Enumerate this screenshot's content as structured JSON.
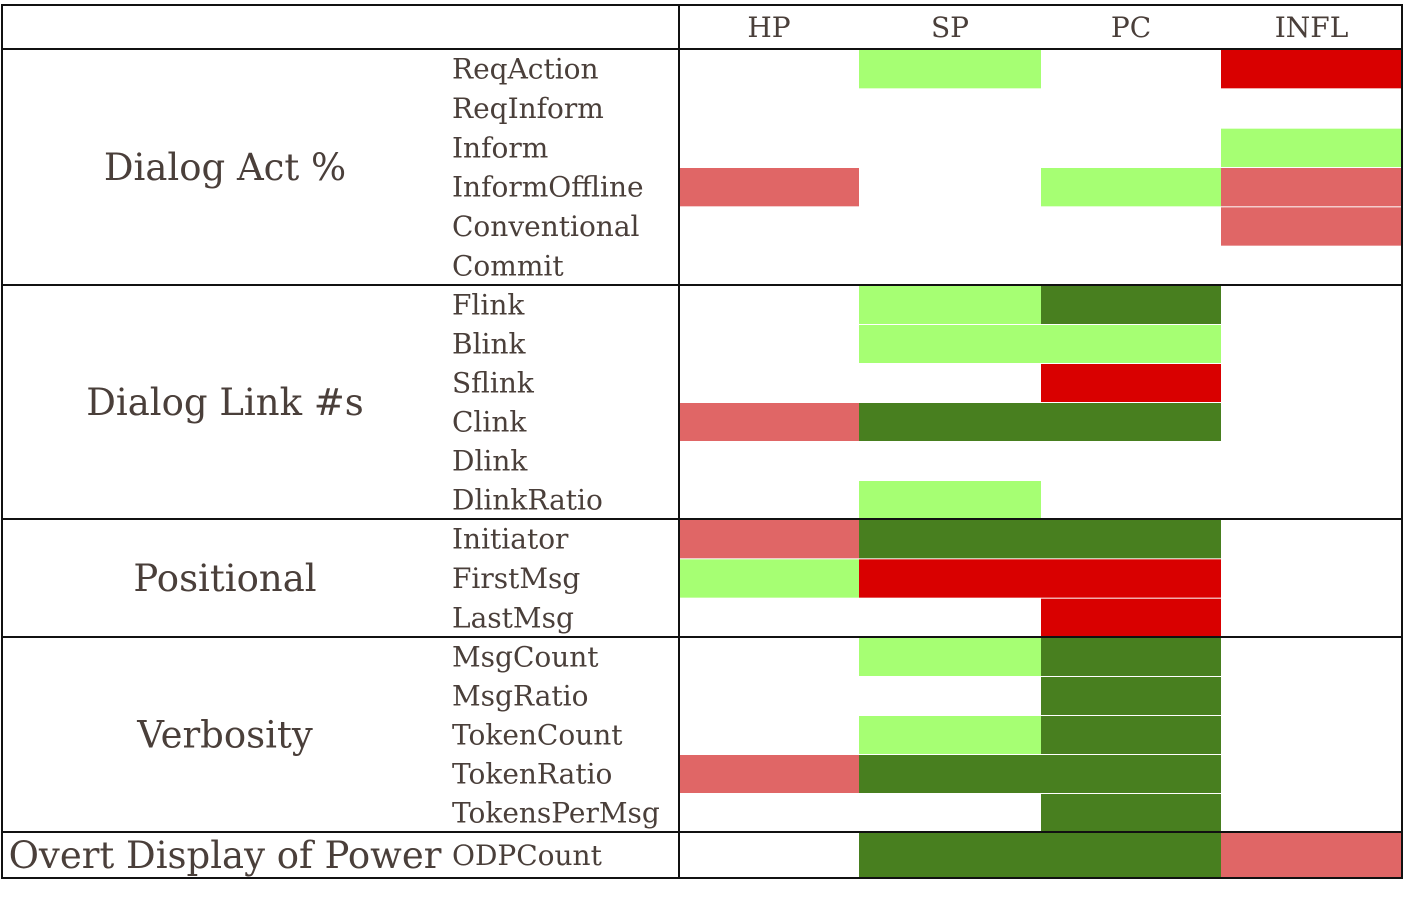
{
  "chart_data": {
    "type": "heatmap",
    "columns": [
      "HP",
      "SP",
      "PC",
      "INFL"
    ],
    "groups": [
      {
        "label": "Dialog Act %",
        "rows": [
          {
            "feature": "ReqAction",
            "cells": [
              "",
              "light-green",
              "",
              "red"
            ]
          },
          {
            "feature": "ReqInform",
            "cells": [
              "",
              "",
              "",
              ""
            ]
          },
          {
            "feature": "Inform",
            "cells": [
              "",
              "",
              "",
              "light-green"
            ]
          },
          {
            "feature": "InformOffline",
            "cells": [
              "light-red",
              "",
              "light-green",
              "light-red"
            ]
          },
          {
            "feature": "Conventional",
            "cells": [
              "",
              "",
              "",
              "light-red"
            ]
          },
          {
            "feature": "Commit",
            "cells": [
              "",
              "",
              "",
              ""
            ]
          }
        ]
      },
      {
        "label": "Dialog Link #s",
        "rows": [
          {
            "feature": "Flink",
            "cells": [
              "",
              "light-green",
              "green",
              ""
            ]
          },
          {
            "feature": "Blink",
            "cells": [
              "",
              "light-green",
              "light-green",
              ""
            ]
          },
          {
            "feature": "Sflink",
            "cells": [
              "",
              "",
              "red",
              ""
            ]
          },
          {
            "feature": "Clink",
            "cells": [
              "light-red",
              "green",
              "green",
              ""
            ]
          },
          {
            "feature": "Dlink",
            "cells": [
              "",
              "",
              "",
              ""
            ]
          },
          {
            "feature": "DlinkRatio",
            "cells": [
              "",
              "light-green",
              "",
              ""
            ]
          }
        ]
      },
      {
        "label": "Positional",
        "rows": [
          {
            "feature": "Initiator",
            "cells": [
              "light-red",
              "green",
              "green",
              ""
            ]
          },
          {
            "feature": "FirstMsg",
            "cells": [
              "light-green",
              "red",
              "red",
              ""
            ]
          },
          {
            "feature": "LastMsg",
            "cells": [
              "",
              "",
              "red",
              ""
            ]
          }
        ]
      },
      {
        "label": "Verbosity",
        "rows": [
          {
            "feature": "MsgCount",
            "cells": [
              "",
              "light-green",
              "green",
              ""
            ]
          },
          {
            "feature": "MsgRatio",
            "cells": [
              "",
              "",
              "green",
              ""
            ]
          },
          {
            "feature": "TokenCount",
            "cells": [
              "",
              "light-green",
              "green",
              ""
            ]
          },
          {
            "feature": "TokenRatio",
            "cells": [
              "light-red",
              "green",
              "green",
              ""
            ]
          },
          {
            "feature": "TokensPerMsg",
            "cells": [
              "",
              "",
              "green",
              ""
            ]
          }
        ]
      },
      {
        "label": "Overt Display of Power",
        "rows": [
          {
            "feature": "ODPCount",
            "cells": [
              "",
              "green",
              "green",
              "light-red"
            ]
          }
        ]
      }
    ],
    "colors": {
      "light-green": "#a6ff73",
      "green": "#487f1f",
      "red": "#d90000",
      "light-red": "#e06666"
    }
  }
}
